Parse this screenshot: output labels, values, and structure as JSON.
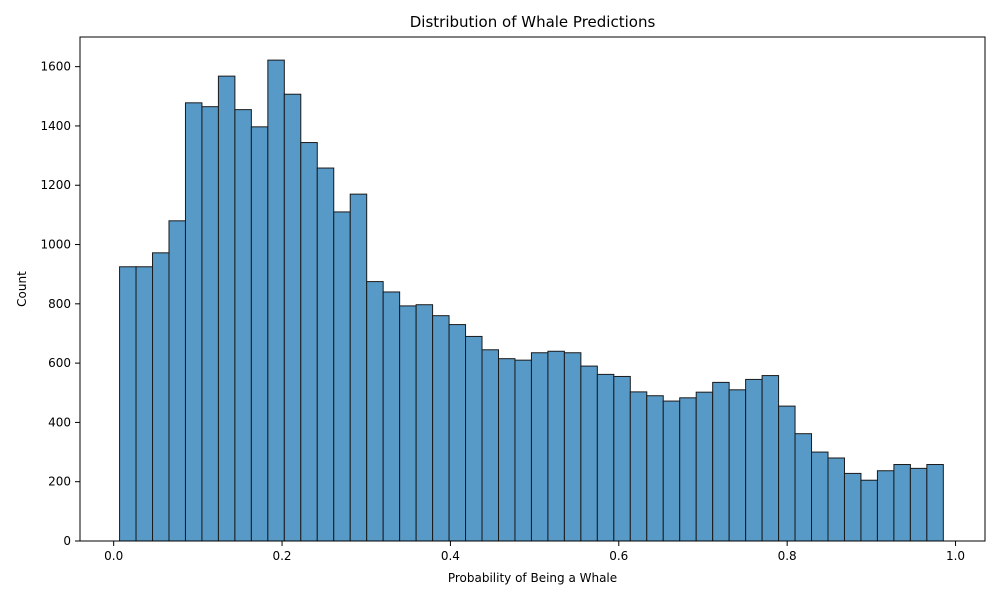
{
  "chart_data": {
    "type": "bar",
    "title": "Distribution of Whale Predictions",
    "xlabel": "Probability of Being a Whale",
    "ylabel": "Count",
    "xlim": [
      -0.04,
      1.035
    ],
    "ylim": [
      0,
      1700
    ],
    "x_ticks": [
      0.0,
      0.2,
      0.4,
      0.6,
      0.8,
      1.0
    ],
    "x_tick_labels": [
      "0.0",
      "0.2",
      "0.4",
      "0.6",
      "0.8",
      "1.0"
    ],
    "y_ticks": [
      0,
      200,
      400,
      600,
      800,
      1000,
      1200,
      1400,
      1600
    ],
    "y_tick_labels": [
      "0",
      "200",
      "400",
      "600",
      "800",
      "1000",
      "1200",
      "1400",
      "1600"
    ],
    "bin_start": 0.007,
    "bin_width": 0.01957,
    "counts": [
      925,
      925,
      972,
      1080,
      1478,
      1465,
      1568,
      1455,
      1397,
      1622,
      1507,
      1344,
      1258,
      1110,
      1170,
      875,
      840,
      793,
      797,
      760,
      730,
      690,
      645,
      615,
      610,
      635,
      640,
      635,
      590,
      562,
      555,
      503,
      490,
      472,
      483,
      502,
      535,
      510,
      545,
      558,
      455,
      362,
      300,
      280,
      228,
      205,
      237,
      258,
      245,
      258
    ],
    "bar_color": "#5799c7",
    "edge_color": "#1a1a1a",
    "grid": false,
    "legend": "none"
  }
}
